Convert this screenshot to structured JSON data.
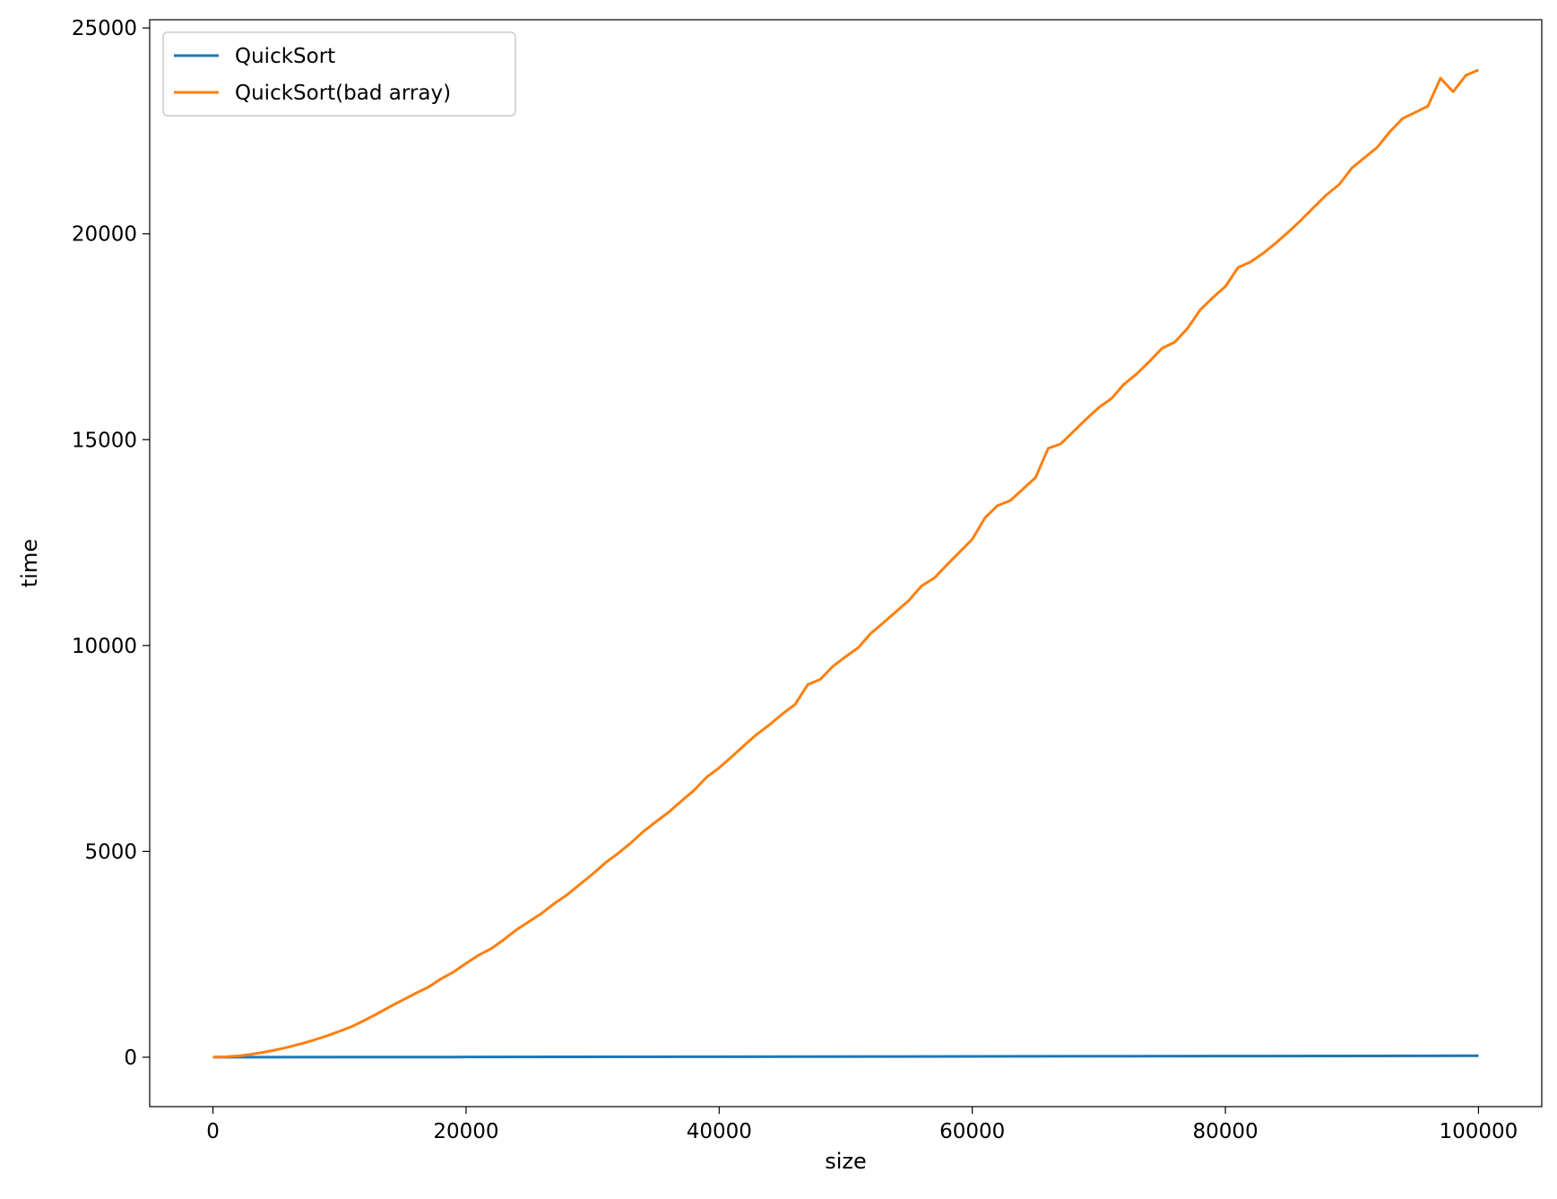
{
  "chart_data": {
    "type": "line",
    "title": "",
    "xlabel": "size",
    "ylabel": "time",
    "xlim": [
      -5000,
      105000
    ],
    "ylim": [
      -1200,
      25200
    ],
    "xticks": [
      0,
      20000,
      40000,
      60000,
      80000,
      100000
    ],
    "yticks": [
      0,
      5000,
      10000,
      15000,
      20000,
      25000
    ],
    "grid": false,
    "legend_position": "top-left",
    "series": [
      {
        "name": "QuickSort",
        "color": "#1f77b4",
        "x": [
          0,
          20000,
          40000,
          60000,
          80000,
          100000
        ],
        "y": [
          0,
          5,
          12,
          20,
          28,
          35
        ]
      },
      {
        "name": "QuickSort(bad array)",
        "color": "#ff7f0e",
        "x": [
          0,
          1000,
          2000,
          3000,
          4000,
          5000,
          6000,
          7000,
          8000,
          9000,
          10000,
          11000,
          12000,
          13000,
          14000,
          15000,
          16000,
          17000,
          18000,
          19000,
          20000,
          21000,
          22000,
          23000,
          24000,
          25000,
          26000,
          27000,
          28000,
          29000,
          30000,
          31000,
          32000,
          33000,
          34000,
          35000,
          36000,
          37000,
          38000,
          39000,
          40000,
          41000,
          42000,
          43000,
          44000,
          45000,
          46000,
          47000,
          48000,
          49000,
          50000,
          51000,
          52000,
          53000,
          54000,
          55000,
          56000,
          57000,
          58000,
          59000,
          60000,
          61000,
          62000,
          63000,
          64000,
          65000,
          66000,
          67000,
          68000,
          69000,
          70000,
          71000,
          72000,
          73000,
          74000,
          75000,
          76000,
          77000,
          78000,
          79000,
          80000,
          81000,
          82000,
          83000,
          84000,
          85000,
          86000,
          87000,
          88000,
          89000,
          90000,
          91000,
          92000,
          93000,
          94000,
          95000,
          96000,
          97000,
          98000,
          99000,
          100000
        ],
        "y": [
          0,
          10,
          30,
          70,
          120,
          180,
          250,
          330,
          420,
          520,
          630,
          750,
          900,
          1060,
          1230,
          1390,
          1550,
          1700,
          1900,
          2070,
          2280,
          2480,
          2640,
          2860,
          3100,
          3300,
          3500,
          3740,
          3950,
          4200,
          4450,
          4720,
          4950,
          5200,
          5480,
          5720,
          5950,
          6220,
          6480,
          6800,
          7030,
          7300,
          7580,
          7850,
          8080,
          8340,
          8570,
          9050,
          9180,
          9500,
          9730,
          9950,
          10300,
          10560,
          10830,
          11100,
          11450,
          11640,
          11960,
          12270,
          12580,
          13100,
          13400,
          13520,
          13800,
          14080,
          14790,
          14900,
          15200,
          15500,
          15780,
          16000,
          16350,
          16600,
          16900,
          17220,
          17370,
          17700,
          18150,
          18450,
          18720,
          19180,
          19320,
          19530,
          19780,
          20050,
          20340,
          20650,
          20950,
          21200,
          21600,
          21850,
          22100,
          22480,
          22800,
          22950,
          23100,
          23780,
          23450,
          23850,
          23980
        ]
      }
    ]
  }
}
